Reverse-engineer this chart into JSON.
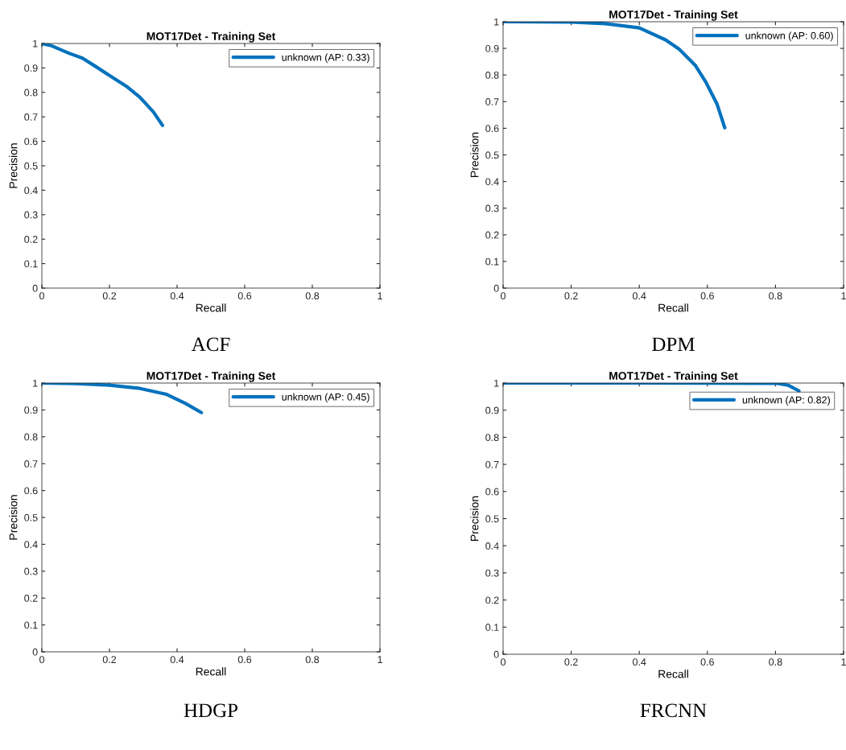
{
  "chart_data": [
    {
      "type": "line",
      "title": "MOT17Det - Training Set",
      "xlabel": "Recall",
      "ylabel": "Precision",
      "annotations": [
        "ACF"
      ],
      "xlim": [
        0,
        1
      ],
      "ylim": [
        0,
        1
      ],
      "xticks": [
        0,
        0.2,
        0.4,
        0.6,
        0.8,
        1
      ],
      "yticks": [
        0,
        0.1,
        0.2,
        0.3,
        0.4,
        0.5,
        0.6,
        0.7,
        0.8,
        0.9,
        1
      ],
      "grid": false,
      "legend": "top right",
      "marker": "none",
      "line_style": "solid",
      "series": [
        {
          "name": "unknown (AP: 0.33)",
          "color": "#0072bd",
          "x": [
            0,
            0.03,
            0.08,
            0.12,
            0.16,
            0.21,
            0.25,
            0.29,
            0.33,
            0.357
          ],
          "values": [
            1,
            0.99,
            0.96,
            0.94,
            0.905,
            0.86,
            0.825,
            0.78,
            0.72,
            0.665
          ]
        }
      ]
    },
    {
      "type": "line",
      "title": "MOT17Det - Training Set",
      "xlabel": "Recall",
      "ylabel": "Precision",
      "annotations": [
        "DPM"
      ],
      "xlim": [
        0,
        1
      ],
      "ylim": [
        0,
        1
      ],
      "xticks": [
        0,
        0.2,
        0.4,
        0.6,
        0.8,
        1
      ],
      "yticks": [
        0,
        0.1,
        0.2,
        0.3,
        0.4,
        0.5,
        0.6,
        0.7,
        0.8,
        0.9,
        1
      ],
      "grid": false,
      "legend": "top right",
      "marker": "none",
      "line_style": "solid",
      "series": [
        {
          "name": "unknown (AP: 0.60)",
          "color": "#0072bd",
          "x": [
            0,
            0.2,
            0.3,
            0.4,
            0.477,
            0.517,
            0.564,
            0.596,
            0.628,
            0.651
          ],
          "values": [
            1,
            0.999,
            0.993,
            0.977,
            0.932,
            0.897,
            0.837,
            0.772,
            0.692,
            0.602
          ]
        }
      ]
    },
    {
      "type": "line",
      "title": "MOT17Det - Training Set",
      "xlabel": "Recall",
      "ylabel": "Precision",
      "annotations": [
        "HDGP"
      ],
      "xlim": [
        0,
        1
      ],
      "ylim": [
        0,
        1
      ],
      "xticks": [
        0,
        0.2,
        0.4,
        0.6,
        0.8,
        1
      ],
      "yticks": [
        0,
        0.1,
        0.2,
        0.3,
        0.4,
        0.5,
        0.6,
        0.7,
        0.8,
        0.9,
        1
      ],
      "grid": false,
      "legend": "top right",
      "marker": "none",
      "line_style": "solid",
      "series": [
        {
          "name": "unknown (AP: 0.45)",
          "color": "#0072bd",
          "x": [
            0,
            0.1,
            0.2,
            0.29,
            0.369,
            0.425,
            0.472
          ],
          "values": [
            1,
            0.998,
            0.992,
            0.98,
            0.958,
            0.924,
            0.89
          ]
        }
      ]
    },
    {
      "type": "line",
      "title": "MOT17Det - Training Set",
      "xlabel": "Recall",
      "ylabel": "Precision",
      "annotations": [
        "FRCNN"
      ],
      "xlim": [
        0,
        1
      ],
      "ylim": [
        0,
        1
      ],
      "xticks": [
        0,
        0.2,
        0.4,
        0.6,
        0.8,
        1
      ],
      "yticks": [
        0,
        0.1,
        0.2,
        0.3,
        0.4,
        0.5,
        0.6,
        0.7,
        0.8,
        0.9,
        1
      ],
      "grid": false,
      "legend": "top right",
      "marker": "none",
      "line_style": "solid",
      "series": [
        {
          "name": "unknown (AP: 0.82)",
          "color": "#0072bd",
          "x": [
            0,
            0.4,
            0.806,
            0.837,
            0.869
          ],
          "values": [
            1,
            1,
            0.999,
            0.992,
            0.971
          ]
        }
      ]
    }
  ]
}
